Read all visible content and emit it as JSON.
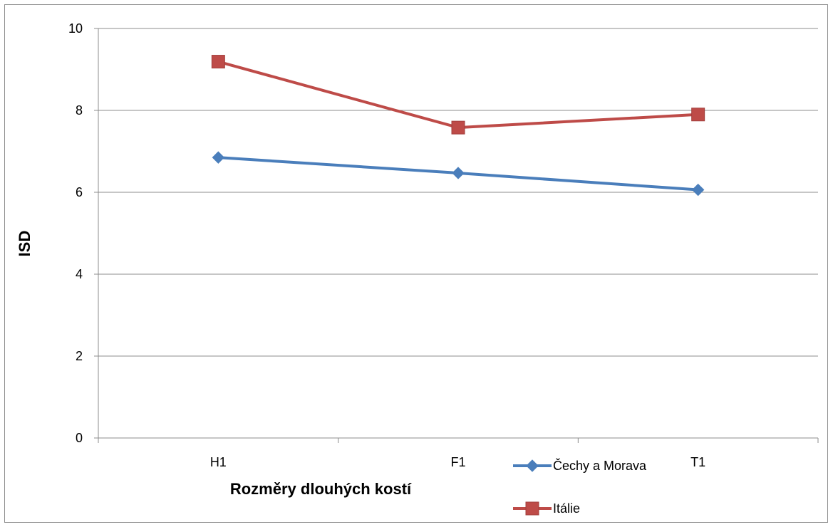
{
  "chart_data": {
    "type": "line",
    "title": "",
    "xlabel": "Rozměry dlouhých kostí",
    "ylabel": "ISD",
    "categories": [
      "H1",
      "F1",
      "T1"
    ],
    "ylim": [
      0,
      10
    ],
    "yticks": [
      0,
      2,
      4,
      6,
      8,
      10
    ],
    "grid": true,
    "legend_position": "bottom-right",
    "series": [
      {
        "name": "Čechy a Morava",
        "values": [
          6.85,
          6.47,
          6.06
        ],
        "color": "#4a7ebb",
        "marker": "diamond"
      },
      {
        "name": "Itálie",
        "values": [
          9.19,
          7.58,
          7.9
        ],
        "color": "#be4b48",
        "marker": "square"
      }
    ]
  }
}
